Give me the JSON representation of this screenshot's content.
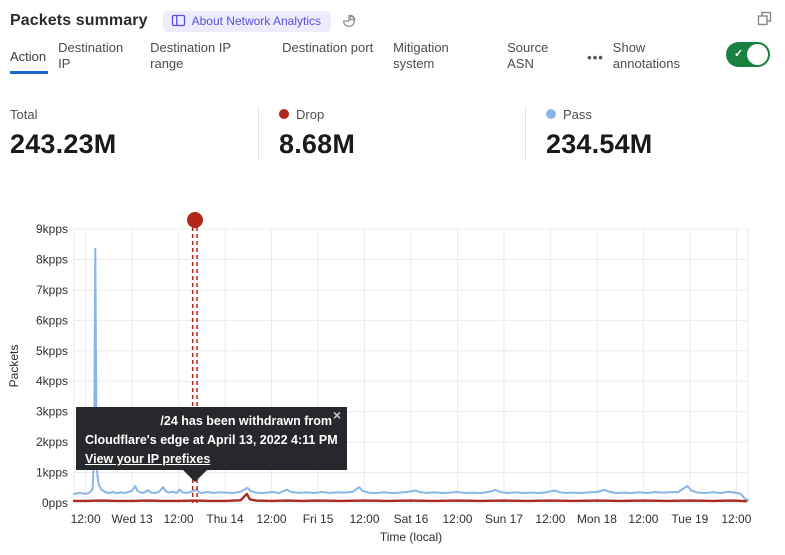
{
  "header": {
    "title": "Packets summary",
    "about_badge": "About Network Analytics"
  },
  "tabs": {
    "items": [
      {
        "label": "Action",
        "active": true
      },
      {
        "label": "Destination IP",
        "active": false
      },
      {
        "label": "Destination IP range",
        "active": false
      },
      {
        "label": "Destination port",
        "active": false
      },
      {
        "label": "Mitigation system",
        "active": false
      },
      {
        "label": "Source ASN",
        "active": false
      }
    ],
    "more": "•••",
    "annotations_label": "Show annotations",
    "annotations_on": true
  },
  "stats": {
    "items": [
      {
        "label": "Total",
        "value": "243.23M"
      },
      {
        "label": "Drop",
        "value": "8.68M",
        "dot_color": "#b2261c"
      },
      {
        "label": "Pass",
        "value": "234.54M",
        "dot_color": "#8ab5e8"
      }
    ]
  },
  "icons": {
    "close": "×",
    "check": "✓"
  },
  "colors": {
    "active_tab_underline": "#2063cd",
    "toggle_green": "#17813d",
    "badge_bg": "#edebfc",
    "badge_text": "#5a4fe0",
    "pass_line": "#8ab5e8",
    "drop_line": "#ad2a1f",
    "annotation_red": "#b2261c",
    "tooltip_bg": "#26282b",
    "gridline": "#ececec"
  },
  "chart_data": {
    "type": "line",
    "title": "",
    "ylabel": "Packets",
    "xlabel": "Time (local)",
    "ylim": [
      0,
      9
    ],
    "xlim": [
      -3,
      171
    ],
    "grid": true,
    "legend_position": "none",
    "y_ticks": [
      {
        "v": 0,
        "label": "0pps"
      },
      {
        "v": 1,
        "label": "1kpps"
      },
      {
        "v": 2,
        "label": "2kpps"
      },
      {
        "v": 3,
        "label": "3kpps"
      },
      {
        "v": 4,
        "label": "4kpps"
      },
      {
        "v": 5,
        "label": "5kpps"
      },
      {
        "v": 6,
        "label": "6kpps"
      },
      {
        "v": 7,
        "label": "7kpps"
      },
      {
        "v": 8,
        "label": "8kpps"
      },
      {
        "v": 9,
        "label": "9kpps"
      }
    ],
    "x_ticks": [
      {
        "v": 0,
        "label": "12:00"
      },
      {
        "v": 12,
        "label": "Wed 13"
      },
      {
        "v": 24,
        "label": "12:00"
      },
      {
        "v": 36,
        "label": "Thu 14"
      },
      {
        "v": 48,
        "label": "12:00"
      },
      {
        "v": 60,
        "label": "Fri 15"
      },
      {
        "v": 72,
        "label": "12:00"
      },
      {
        "v": 84,
        "label": "Sat 16"
      },
      {
        "v": 96,
        "label": "12:00"
      },
      {
        "v": 108,
        "label": "Sun 17"
      },
      {
        "v": 120,
        "label": "12:00"
      },
      {
        "v": 132,
        "label": "Mon 18"
      },
      {
        "v": 144,
        "label": "12:00"
      },
      {
        "v": 156,
        "label": "Tue 19"
      },
      {
        "v": 168,
        "label": "12:00"
      }
    ],
    "series": [
      {
        "name": "Pass",
        "color": "#8ab5e8",
        "width": 2,
        "points": [
          [
            -3,
            0.3
          ],
          [
            -1.5,
            0.33
          ],
          [
            0,
            0.3
          ],
          [
            1,
            0.34
          ],
          [
            1.8,
            0.45
          ],
          [
            2.2,
            1.6
          ],
          [
            2.5,
            8.35
          ],
          [
            2.75,
            3.2
          ],
          [
            3,
            0.95
          ],
          [
            3.4,
            0.6
          ],
          [
            4,
            0.45
          ],
          [
            5,
            0.36
          ],
          [
            6,
            0.33
          ],
          [
            7,
            0.36
          ],
          [
            8,
            0.32
          ],
          [
            9,
            0.35
          ],
          [
            10,
            0.33
          ],
          [
            11,
            0.36
          ],
          [
            12,
            0.4
          ],
          [
            12.8,
            0.56
          ],
          [
            13.4,
            0.4
          ],
          [
            14,
            0.35
          ],
          [
            15,
            0.33
          ],
          [
            16,
            0.42
          ],
          [
            17,
            0.34
          ],
          [
            18,
            0.33
          ],
          [
            19,
            0.37
          ],
          [
            20,
            0.52
          ],
          [
            20.7,
            0.38
          ],
          [
            21.5,
            0.34
          ],
          [
            22.5,
            0.37
          ],
          [
            23.5,
            0.33
          ],
          [
            24.3,
            0.44
          ],
          [
            25,
            0.35
          ],
          [
            26,
            0.33
          ],
          [
            27,
            0.36
          ],
          [
            28,
            0.4
          ],
          [
            28.6,
            0.44
          ],
          [
            29.3,
            0.35
          ],
          [
            30,
            0.33
          ],
          [
            31.5,
            0.36
          ],
          [
            33,
            0.33
          ],
          [
            34.5,
            0.35
          ],
          [
            36,
            0.34
          ],
          [
            38,
            0.33
          ],
          [
            40,
            0.37
          ],
          [
            41.8,
            0.5
          ],
          [
            42.6,
            0.39
          ],
          [
            44,
            0.34
          ],
          [
            46,
            0.33
          ],
          [
            48,
            0.36
          ],
          [
            50,
            0.33
          ],
          [
            52,
            0.44
          ],
          [
            52.9,
            0.37
          ],
          [
            55,
            0.33
          ],
          [
            57,
            0.35
          ],
          [
            59,
            0.33
          ],
          [
            61,
            0.36
          ],
          [
            63,
            0.33
          ],
          [
            65,
            0.35
          ],
          [
            67,
            0.34
          ],
          [
            69,
            0.37
          ],
          [
            70.6,
            0.52
          ],
          [
            71.5,
            0.4
          ],
          [
            73,
            0.34
          ],
          [
            75,
            0.33
          ],
          [
            77,
            0.35
          ],
          [
            79,
            0.33
          ],
          [
            81,
            0.34
          ],
          [
            83,
            0.36
          ],
          [
            85,
            0.41
          ],
          [
            86.5,
            0.35
          ],
          [
            88,
            0.33
          ],
          [
            90,
            0.35
          ],
          [
            92,
            0.33
          ],
          [
            94,
            0.34
          ],
          [
            96,
            0.36
          ],
          [
            98,
            0.33
          ],
          [
            100,
            0.34
          ],
          [
            102,
            0.33
          ],
          [
            104,
            0.36
          ],
          [
            105.9,
            0.43
          ],
          [
            107,
            0.36
          ],
          [
            109,
            0.33
          ],
          [
            111,
            0.35
          ],
          [
            113,
            0.33
          ],
          [
            115,
            0.34
          ],
          [
            117,
            0.33
          ],
          [
            119,
            0.35
          ],
          [
            121,
            0.41
          ],
          [
            122.5,
            0.35
          ],
          [
            124,
            0.33
          ],
          [
            126,
            0.34
          ],
          [
            128,
            0.33
          ],
          [
            130,
            0.35
          ],
          [
            132,
            0.36
          ],
          [
            134,
            0.43
          ],
          [
            135.5,
            0.36
          ],
          [
            137,
            0.33
          ],
          [
            139,
            0.34
          ],
          [
            141,
            0.33
          ],
          [
            143,
            0.35
          ],
          [
            145,
            0.33
          ],
          [
            147,
            0.36
          ],
          [
            149,
            0.34
          ],
          [
            151,
            0.35
          ],
          [
            153,
            0.36
          ],
          [
            155.3,
            0.56
          ],
          [
            156.4,
            0.41
          ],
          [
            158,
            0.34
          ],
          [
            160,
            0.33
          ],
          [
            162,
            0.35
          ],
          [
            164,
            0.33
          ],
          [
            166,
            0.37
          ],
          [
            167.5,
            0.34
          ],
          [
            169,
            0.31
          ],
          [
            170.3,
            0.13
          ],
          [
            171,
            0.1
          ]
        ]
      },
      {
        "name": "Drop",
        "color": "#ad2a1f",
        "width": 2.4,
        "points": [
          [
            -3,
            0.07
          ],
          [
            0,
            0.07
          ],
          [
            4,
            0.08
          ],
          [
            8,
            0.07
          ],
          [
            12,
            0.07
          ],
          [
            16,
            0.08
          ],
          [
            20,
            0.07
          ],
          [
            24,
            0.07
          ],
          [
            28,
            0.08
          ],
          [
            32,
            0.07
          ],
          [
            36,
            0.07
          ],
          [
            40,
            0.09
          ],
          [
            41.6,
            0.3
          ],
          [
            42.4,
            0.12
          ],
          [
            44,
            0.08
          ],
          [
            48,
            0.07
          ],
          [
            52,
            0.08
          ],
          [
            56,
            0.07
          ],
          [
            60,
            0.08
          ],
          [
            66,
            0.07
          ],
          [
            72,
            0.08
          ],
          [
            78,
            0.07
          ],
          [
            84,
            0.08
          ],
          [
            90,
            0.07
          ],
          [
            96,
            0.08
          ],
          [
            102,
            0.07
          ],
          [
            108,
            0.08
          ],
          [
            114,
            0.07
          ],
          [
            120,
            0.08
          ],
          [
            126,
            0.07
          ],
          [
            132,
            0.08
          ],
          [
            138,
            0.07
          ],
          [
            144,
            0.08
          ],
          [
            150,
            0.07
          ],
          [
            156,
            0.08
          ],
          [
            162,
            0.07
          ],
          [
            167,
            0.08
          ],
          [
            170.5,
            0.06
          ]
        ]
      }
    ],
    "annotation": {
      "x": 28.2,
      "color": "#b2261c",
      "tooltip_line1": "/24 has been withdrawn from",
      "tooltip_line2": "Cloudflare's edge at April 13, 2022 4:11 PM",
      "tooltip_link": "View your IP prefixes"
    }
  }
}
